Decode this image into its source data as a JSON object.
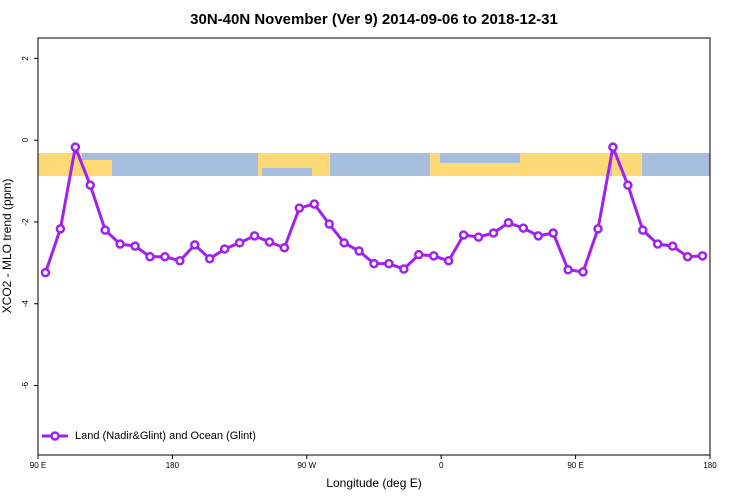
{
  "chart_data": {
    "type": "line",
    "title": "30N-40N November (Ver 9)   2014-09-06 to 2018-12-31",
    "x_label": "Longitude (deg E)",
    "y_label": "XCO2 - MLO trend (ppm)",
    "x": [
      95,
      105,
      115,
      125,
      135,
      145,
      155,
      165,
      175,
      185,
      195,
      205,
      215,
      225,
      235,
      245,
      255,
      265,
      275,
      285,
      295,
      305,
      315,
      325,
      335,
      345,
      355,
      365,
      375,
      385,
      395,
      405,
      415,
      425,
      435,
      445,
      455,
      465,
      475,
      485,
      495,
      505,
      515,
      525,
      535
    ],
    "series": [
      {
        "name": "Land (Nadir&Glint) and Ocean (Glint)",
        "color": "#a020f0",
        "values": [
          -3.24,
          -2.17,
          -0.17,
          -1.1,
          -2.2,
          -2.54,
          -2.59,
          -2.85,
          -2.85,
          -2.95,
          -2.56,
          -2.9,
          -2.66,
          -2.51,
          -2.34,
          -2.49,
          -2.63,
          -1.66,
          -1.56,
          -2.05,
          -2.51,
          -2.71,
          -3.02,
          -3.02,
          -3.15,
          -2.8,
          -2.83,
          -2.95,
          -2.32,
          -2.37,
          -2.27,
          -2.02,
          -2.15,
          -2.34,
          -2.27,
          -3.17,
          -3.22,
          -2.17,
          -0.17,
          -1.1,
          -2.2,
          -2.54,
          -2.59,
          -2.85,
          -2.83
        ]
      }
    ],
    "xlim": [
      90,
      540
    ],
    "xticks": [
      {
        "value": 90,
        "label": "90 E"
      },
      180,
      {
        "value": 270,
        "label": "90 W"
      },
      {
        "value": 360,
        "label": "0"
      },
      {
        "value": 450,
        "label": "90 E"
      },
      {
        "value": 540,
        "label": "180"
      }
    ],
    "ylim": [
      -7.7,
      2.5
    ],
    "yticks": [
      2,
      0,
      -2,
      -4,
      -6
    ],
    "legend": "bottom-left"
  }
}
